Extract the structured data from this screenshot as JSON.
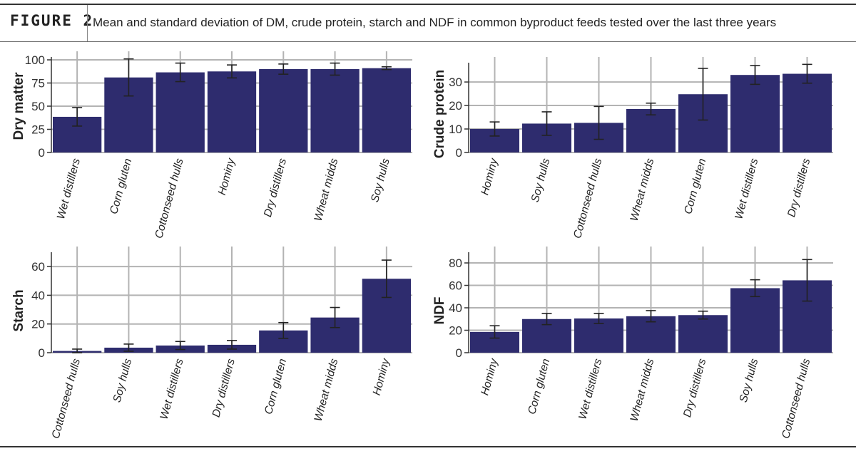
{
  "figure": {
    "label": "FIGURE 2",
    "title": "Mean and standard deviation of DM, crude protein, starch and NDF in common byproduct feeds tested over the last three years"
  },
  "colors": {
    "bar": "#2e2c6e",
    "grid": "#b3b3b3",
    "axis": "#333333"
  },
  "chart_data": [
    {
      "type": "bar",
      "ylabel": "Dry matter",
      "ylim": [
        0,
        100
      ],
      "yticks": [
        "0",
        "25",
        "50",
        "75",
        "100"
      ],
      "grid": true,
      "categories": [
        "Wet distillers",
        "Corn gluten",
        "Cottonseed hulls",
        "Hominy",
        "Dry distillers",
        "Wheat midds",
        "Soy hulls"
      ],
      "values": [
        38.5,
        81,
        86.5,
        87.5,
        90,
        90,
        91
      ],
      "errors": [
        10,
        20,
        10,
        7,
        5.5,
        6.5,
        1.5
      ]
    },
    {
      "type": "bar",
      "ylabel": "Crude protein",
      "ylim": [
        0,
        37
      ],
      "yticks": [
        "0",
        "10",
        "20",
        "30"
      ],
      "grid": true,
      "categories": [
        "Hominy",
        "Soy hulls",
        "Cottonseed hulls",
        "Wheat midds",
        "Corn gluten",
        "Wet distillers",
        "Dry distillers"
      ],
      "values": [
        10,
        12.3,
        12.6,
        18.5,
        24.8,
        33,
        33.5
      ],
      "errors": [
        3,
        5,
        7,
        2.5,
        11,
        4,
        4
      ]
    },
    {
      "type": "bar",
      "ylabel": "Starch",
      "ylim": [
        0,
        68
      ],
      "yticks": [
        "0",
        "20",
        "40",
        "60"
      ],
      "grid": true,
      "categories": [
        "Cottonseed hulls",
        "Soy hulls",
        "Wet distillers",
        "Dry distillers",
        "Corn gluten",
        "Wheat midds",
        "Hominy"
      ],
      "values": [
        1.2,
        3.5,
        5,
        5.5,
        15.5,
        24.5,
        51.5
      ],
      "errors": [
        1.3,
        2.5,
        2.8,
        3,
        5.5,
        7,
        13
      ]
    },
    {
      "type": "bar",
      "ylabel": "NDF",
      "ylim": [
        0,
        87
      ],
      "yticks": [
        "0",
        "20",
        "40",
        "60",
        "80"
      ],
      "grid": true,
      "categories": [
        "Hominy",
        "Corn gluten",
        "Wet distillers",
        "Wheat midds",
        "Dry distillers",
        "Soy hulls",
        "Cottonseed hulls"
      ],
      "values": [
        18.5,
        30,
        30.5,
        32.5,
        33.5,
        57.5,
        64.5
      ],
      "errors": [
        5.5,
        5,
        4.5,
        5,
        3.5,
        7.5,
        18.5
      ]
    }
  ]
}
